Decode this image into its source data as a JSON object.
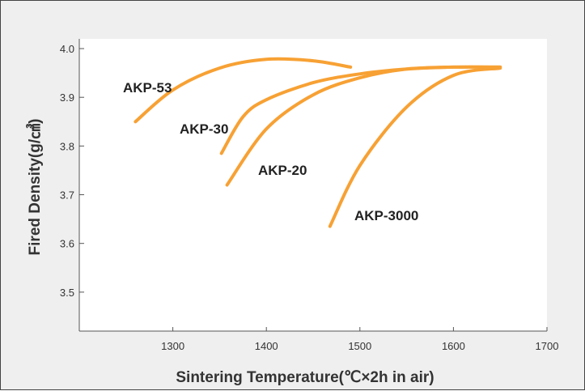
{
  "chart_data": {
    "type": "line",
    "title": "",
    "xlabel": "Sintering Temperature(℃×2h in air)",
    "ylabel": "Fired Density(g/㎤)",
    "xlim": [
      1200,
      1700
    ],
    "ylim": [
      3.42,
      4.02
    ],
    "x_ticks": [
      "1300",
      "1400",
      "1500",
      "1600",
      "1700"
    ],
    "y_ticks": [
      "3.5",
      "3.6",
      "3.7",
      "3.8",
      "3.9",
      "4.0"
    ],
    "grid": false,
    "legend": "none",
    "line_color": "#f7a134",
    "series": [
      {
        "name": "AKP-53",
        "x": [
          1260,
          1300,
          1350,
          1400,
          1450,
          1490
        ],
        "y": [
          3.85,
          3.915,
          3.96,
          3.978,
          3.975,
          3.962
        ]
      },
      {
        "name": "AKP-30",
        "x": [
          1352,
          1375,
          1400,
          1450,
          1500,
          1550,
          1600,
          1650
        ],
        "y": [
          3.785,
          3.86,
          3.895,
          3.93,
          3.948,
          3.958,
          3.962,
          3.962
        ]
      },
      {
        "name": "AKP-20",
        "x": [
          1358,
          1400,
          1450,
          1500,
          1550,
          1600,
          1650
        ],
        "y": [
          3.72,
          3.835,
          3.905,
          3.94,
          3.958,
          3.962,
          3.962
        ]
      },
      {
        "name": "AKP-3000",
        "x": [
          1468,
          1500,
          1550,
          1600,
          1650
        ],
        "y": [
          3.635,
          3.76,
          3.88,
          3.945,
          3.96
        ]
      }
    ]
  }
}
